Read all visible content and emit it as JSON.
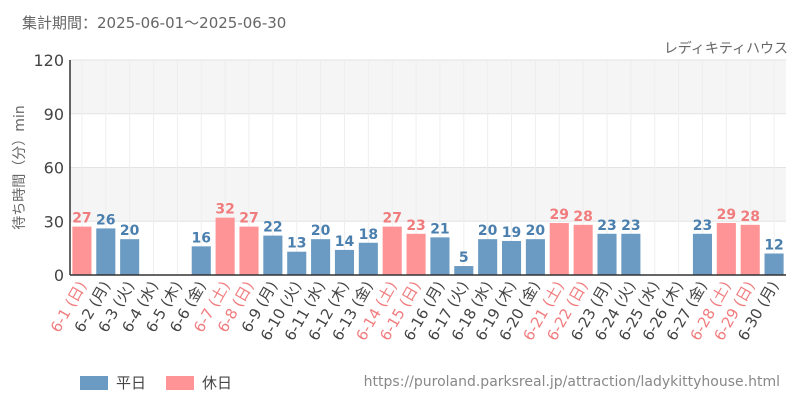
{
  "header": {
    "period": "集計期間：2025-06-01～2025-06-30",
    "attraction": "レディキティハウス",
    "source": "https://puroland.parksreal.jp/attraction/ladykittyhouse.html"
  },
  "legend": {
    "weekday_label": "平日",
    "holiday_label": "休日"
  },
  "colors": {
    "weekday": "#6b9bc3",
    "holiday": "#ff9496",
    "weekday_text": "#4a7fae",
    "holiday_text": "#f07c7e",
    "band": "#f5f5f5",
    "grid": "#e3e3e3",
    "axis": "#333333"
  },
  "chart_data": {
    "type": "bar",
    "ylabel": "待ち時間（分）min",
    "ylim": [
      0,
      120
    ],
    "yticks": [
      0,
      30,
      60,
      90,
      120
    ],
    "shaded_bands": [
      [
        30,
        60
      ],
      [
        90,
        120
      ]
    ],
    "categories": [
      "6-1 (日)",
      "6-2 (月)",
      "6-3 (火)",
      "6-4 (水)",
      "6-5 (木)",
      "6-6 (金)",
      "6-7 (土)",
      "6-8 (日)",
      "6-9 (月)",
      "6-10 (火)",
      "6-11 (水)",
      "6-12 (木)",
      "6-13 (金)",
      "6-14 (土)",
      "6-15 (日)",
      "6-16 (月)",
      "6-17 (火)",
      "6-18 (水)",
      "6-19 (木)",
      "6-20 (金)",
      "6-21 (土)",
      "6-22 (日)",
      "6-23 (月)",
      "6-24 (火)",
      "6-25 (水)",
      "6-26 (木)",
      "6-27 (金)",
      "6-28 (土)",
      "6-29 (日)",
      "6-30 (月)"
    ],
    "values": [
      27,
      26,
      20,
      null,
      null,
      16,
      32,
      27,
      22,
      13,
      20,
      14,
      18,
      27,
      23,
      21,
      5,
      20,
      19,
      20,
      29,
      28,
      23,
      23,
      null,
      null,
      23,
      29,
      28,
      12
    ],
    "holiday": [
      true,
      false,
      false,
      false,
      false,
      false,
      true,
      true,
      false,
      false,
      false,
      false,
      false,
      true,
      true,
      false,
      false,
      false,
      false,
      false,
      true,
      true,
      false,
      false,
      false,
      false,
      false,
      true,
      true,
      false
    ]
  }
}
